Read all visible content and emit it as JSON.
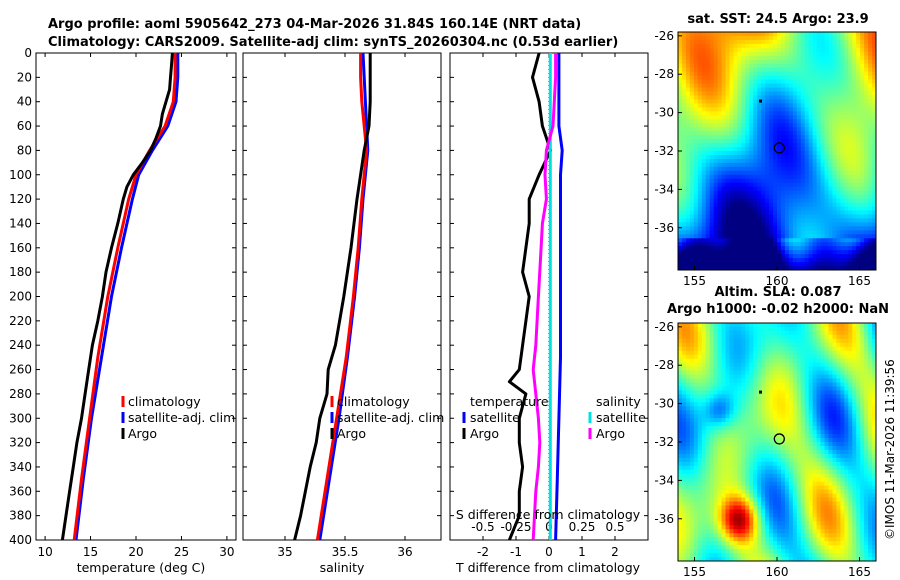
{
  "header": {
    "line1": "Argo profile: aoml 5905642_273 04-Mar-2026 31.84S 160.14E (NRT data)",
    "line2": "Climatology: CARS2009. Satellite-adj clim: synTS_20260304.nc (0.53d earlier)"
  },
  "colors": {
    "climatology": "#ff0000",
    "satellite": "#0000ff",
    "argo": "#000000",
    "sat_salinity": "#00e0e0",
    "argo_salinity": "#ff00ff"
  },
  "copyright": "©IMOS 11-Mar-2026 11:39:56",
  "chart_data": [
    {
      "type": "line",
      "panel": "temperature",
      "xlabel": "temperature (deg C)",
      "xlim": [
        9,
        31
      ],
      "xticks": [
        10,
        15,
        20,
        25,
        30
      ],
      "ylim": [
        400,
        0
      ],
      "yticks": [
        0,
        20,
        40,
        60,
        80,
        100,
        120,
        140,
        160,
        180,
        200,
        220,
        240,
        260,
        280,
        300,
        320,
        340,
        360,
        380,
        400
      ],
      "legend": [
        "climatology",
        "satellite-adj. clim",
        "Argo"
      ],
      "series": [
        {
          "name": "climatology",
          "depth": [
            0,
            20,
            40,
            60,
            80,
            100,
            120,
            160,
            200,
            250,
            300,
            350,
            400
          ],
          "values": [
            24.3,
            24.3,
            24.1,
            23.2,
            21.5,
            20.0,
            19.2,
            18.0,
            16.9,
            15.8,
            14.9,
            14.0,
            13.2
          ]
        },
        {
          "name": "satellite-adj. clim",
          "depth": [
            0,
            20,
            40,
            60,
            80,
            100,
            120,
            160,
            200,
            250,
            300,
            350,
            400
          ],
          "values": [
            24.6,
            24.6,
            24.4,
            23.5,
            21.8,
            20.3,
            19.6,
            18.4,
            17.3,
            16.2,
            15.1,
            14.2,
            13.4
          ]
        },
        {
          "name": "Argo",
          "depth": [
            0,
            10,
            20,
            30,
            40,
            50,
            60,
            70,
            80,
            90,
            100,
            110,
            120,
            140,
            160,
            180,
            200,
            220,
            240,
            260,
            280,
            300,
            320,
            340,
            360,
            380,
            400
          ],
          "values": [
            24.0,
            23.9,
            23.8,
            23.7,
            23.3,
            22.9,
            22.7,
            22.2,
            21.6,
            20.7,
            19.7,
            19.0,
            18.6,
            18.0,
            17.3,
            16.7,
            16.3,
            15.8,
            15.2,
            14.8,
            14.4,
            14.0,
            13.5,
            13.1,
            12.7,
            12.3,
            11.9
          ]
        }
      ]
    },
    {
      "type": "line",
      "panel": "salinity",
      "xlabel": "salinity",
      "xlim": [
        34.65,
        36.3
      ],
      "xticks": [
        35,
        35.5,
        36
      ],
      "ylim": [
        400,
        0
      ],
      "legend": [
        "climatology",
        "satellite-adj. clim",
        "Argo"
      ],
      "series": [
        {
          "name": "climatology",
          "depth": [
            0,
            20,
            40,
            60,
            80,
            100,
            120,
            160,
            200,
            250,
            300,
            350,
            400
          ],
          "values": [
            35.63,
            35.63,
            35.64,
            35.66,
            35.68,
            35.66,
            35.64,
            35.61,
            35.57,
            35.51,
            35.43,
            35.35,
            35.27
          ]
        },
        {
          "name": "satellite-adj. clim",
          "depth": [
            0,
            20,
            40,
            60,
            80,
            100,
            120,
            160,
            200,
            250,
            300,
            350,
            400
          ],
          "values": [
            35.65,
            35.66,
            35.67,
            35.68,
            35.69,
            35.67,
            35.65,
            35.62,
            35.58,
            35.52,
            35.45,
            35.37,
            35.29
          ]
        },
        {
          "name": "Argo",
          "depth": [
            0,
            20,
            40,
            60,
            80,
            100,
            120,
            160,
            200,
            240,
            260,
            280,
            300,
            320,
            340,
            360,
            380,
            400
          ],
          "values": [
            35.71,
            35.71,
            35.71,
            35.7,
            35.66,
            35.63,
            35.6,
            35.55,
            35.49,
            35.42,
            35.36,
            35.35,
            35.29,
            35.26,
            35.21,
            35.17,
            35.13,
            35.08
          ]
        }
      ]
    },
    {
      "type": "line",
      "panel": "differences",
      "xlabel": "T difference from climatology",
      "xlim": [
        -3,
        3
      ],
      "xticks": [
        -2,
        -1,
        0,
        1,
        2
      ],
      "top_xlabel": "S difference from climatology",
      "top_xlim": [
        -0.75,
        0.75
      ],
      "top_xticks": [
        -0.5,
        -0.25,
        0,
        0.25,
        0.5
      ],
      "top_tick_labels": [
        "-0.5",
        "-0.25",
        "0",
        "0.25",
        "0.5"
      ],
      "ylim": [
        400,
        0
      ],
      "legend_temperature": {
        "title": "temperature",
        "entries": [
          "satellite",
          "Argo"
        ]
      },
      "legend_salinity": {
        "title": "salinity",
        "entries": [
          "satellite",
          "Argo"
        ]
      },
      "series": [
        {
          "name": "T satellite",
          "axis": "T",
          "depth": [
            0,
            20,
            40,
            60,
            80,
            100,
            150,
            200,
            250,
            300,
            350,
            400
          ],
          "values": [
            0.3,
            0.3,
            0.3,
            0.3,
            0.4,
            0.35,
            0.35,
            0.35,
            0.35,
            0.3,
            0.25,
            0.2
          ]
        },
        {
          "name": "T Argo",
          "axis": "T",
          "depth": [
            0,
            20,
            30,
            40,
            60,
            80,
            100,
            120,
            140,
            160,
            180,
            200,
            220,
            240,
            260,
            270,
            280,
            300,
            320,
            340,
            360,
            380,
            400
          ],
          "values": [
            -0.3,
            -0.5,
            -0.4,
            -0.3,
            -0.2,
            0.05,
            -0.3,
            -0.6,
            -0.6,
            -0.7,
            -0.8,
            -0.6,
            -0.7,
            -0.8,
            -0.9,
            -1.2,
            -0.7,
            -0.9,
            -0.9,
            -0.8,
            -0.9,
            -0.9,
            -1.2
          ]
        },
        {
          "name": "S satellite",
          "axis": "S",
          "depth": [
            0,
            50,
            100,
            150,
            200,
            250,
            300,
            350,
            400
          ],
          "values": [
            0.01,
            0.01,
            0.01,
            0.01,
            0.01,
            0.01,
            0.01,
            0.01,
            0.01
          ]
        },
        {
          "name": "S Argo",
          "axis": "S",
          "depth": [
            0,
            20,
            40,
            60,
            80,
            100,
            120,
            140,
            160,
            200,
            240,
            260,
            280,
            300,
            320,
            340,
            360,
            380,
            400
          ],
          "values": [
            0.05,
            0.05,
            0.04,
            0.03,
            -0.02,
            -0.03,
            -0.02,
            -0.05,
            -0.06,
            -0.08,
            -0.1,
            -0.12,
            -0.1,
            -0.08,
            -0.07,
            -0.08,
            -0.1,
            -0.11,
            -0.12
          ]
        }
      ]
    },
    {
      "type": "heatmap",
      "panel": "sst_map",
      "title": "sat. SST: 24.5 Argo: 23.9",
      "xticks": [
        155,
        160,
        165
      ],
      "yticks": [
        -26,
        -28,
        -30,
        -32,
        -34,
        -36
      ],
      "xlim": [
        154,
        166
      ],
      "ylim": [
        -38.2,
        -25.8
      ],
      "argo_position": [
        160.14,
        -31.84
      ]
    },
    {
      "type": "heatmap",
      "panel": "sla_map",
      "title_line1": "Altim. SLA: 0.087",
      "title_line2": "Argo h1000: -0.02 h2000: NaN",
      "xticks": [
        155,
        160,
        165
      ],
      "yticks": [
        -26,
        -28,
        -30,
        -32,
        -34,
        -36
      ],
      "xlim": [
        154,
        166
      ],
      "ylim": [
        -38.2,
        -25.8
      ],
      "argo_position": [
        160.14,
        -31.84
      ]
    }
  ]
}
